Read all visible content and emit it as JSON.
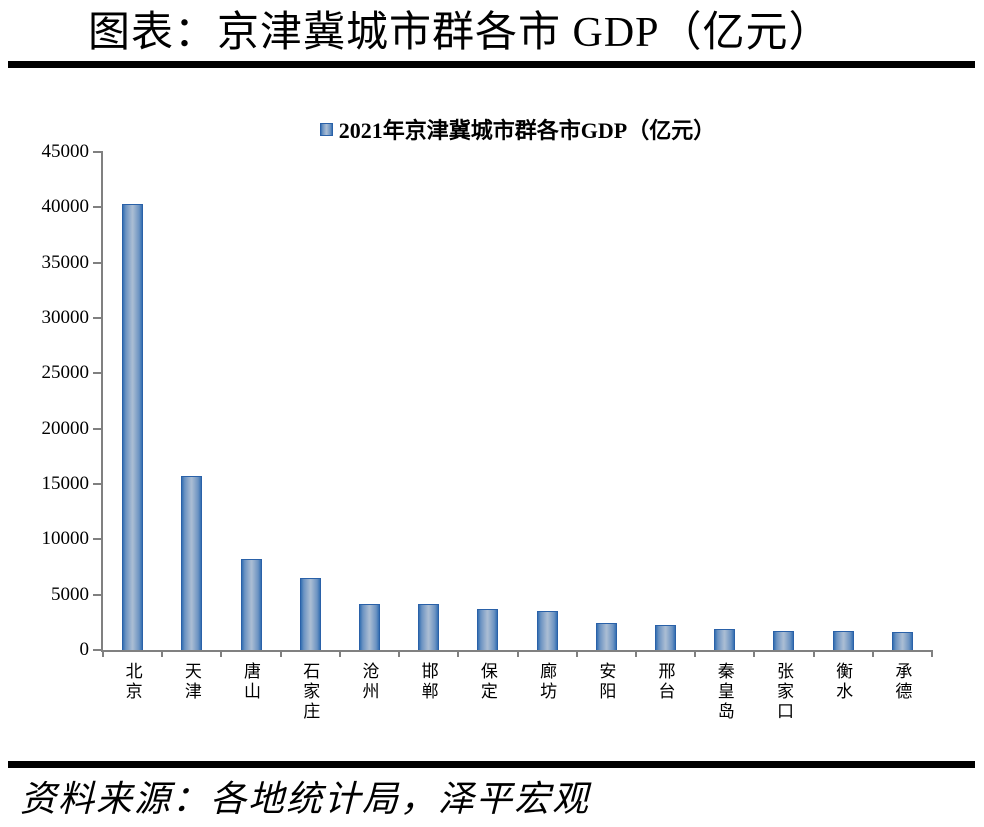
{
  "page": {
    "title": "图表：京津冀城市群各市 GDP（亿元）",
    "source": "资料来源：各地统计局，泽平宏观"
  },
  "chart_data": {
    "type": "bar",
    "title": "",
    "legend": [
      "2021年京津冀城市群各市GDP（亿元）"
    ],
    "legend_position": "top-center",
    "categories": [
      "北京",
      "天津",
      "唐山",
      "石家庄",
      "沧州",
      "邯郸",
      "保定",
      "廊坊",
      "安阳",
      "邢台",
      "秦皇岛",
      "张家口",
      "衡水",
      "承德"
    ],
    "values": [
      40270,
      15695,
      8231,
      6490,
      4163,
      4115,
      3725,
      3553,
      2436,
      2255,
      1872,
      1726,
      1702,
      1663
    ],
    "xlabel": "",
    "ylabel": "",
    "ylim": [
      0,
      45000
    ],
    "yticks": [
      0,
      5000,
      10000,
      15000,
      20000,
      25000,
      30000,
      35000,
      40000,
      45000
    ],
    "grid": false,
    "colors": {
      "bar_edge": "#3570b2",
      "bar_center": "#a9bcd3",
      "bar_border": "#2a61a8",
      "axis": "#808080",
      "rule": "#000000"
    }
  }
}
